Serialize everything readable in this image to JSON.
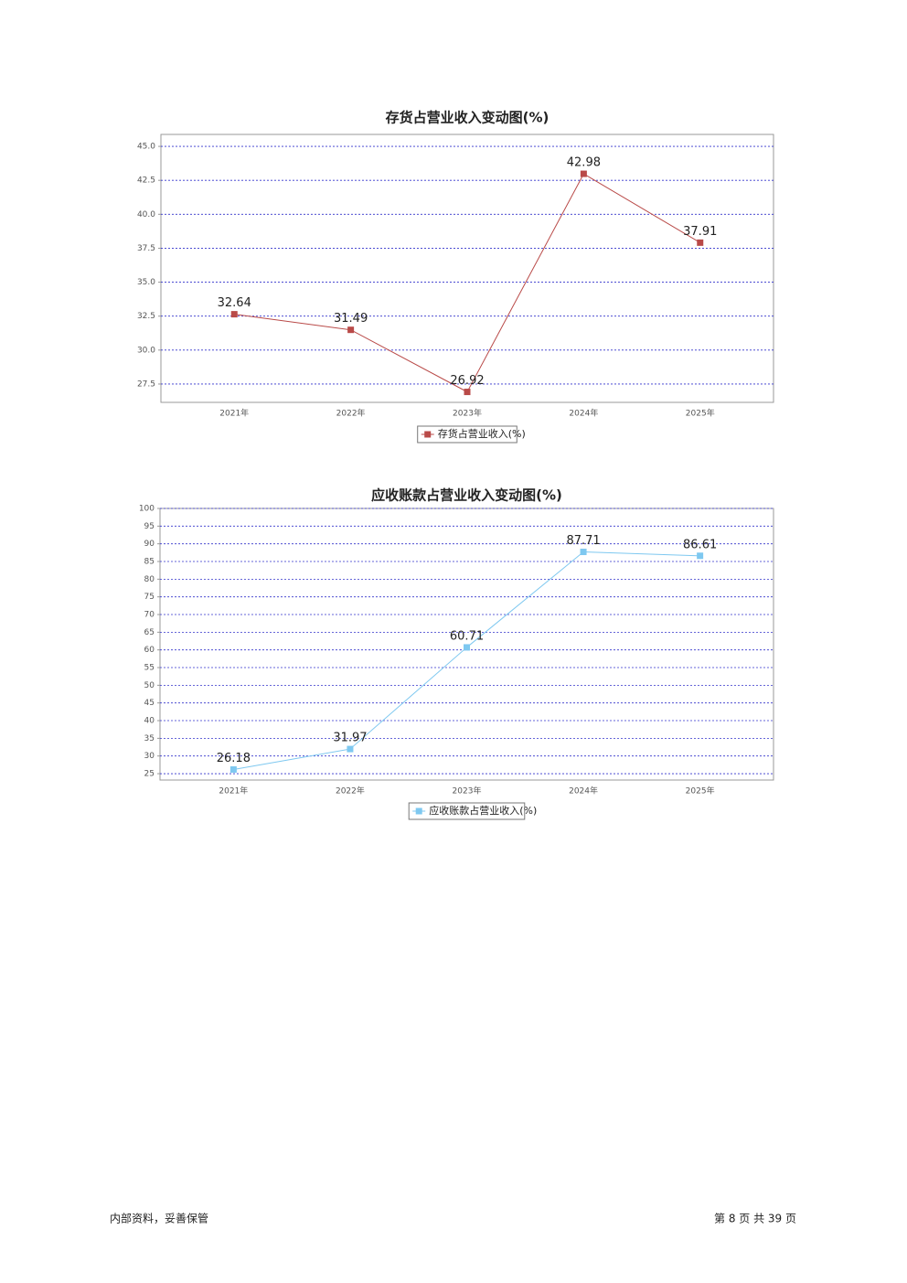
{
  "chart_data": [
    {
      "type": "line",
      "title": "存货占营业收入变动图(%)",
      "categories": [
        "2021年",
        "2022年",
        "2023年",
        "2024年",
        "2025年"
      ],
      "series": [
        {
          "name": "存货占营业收入(%)",
          "color": "#b94a48",
          "values": [
            32.64,
            31.49,
            26.92,
            42.98,
            37.91
          ]
        }
      ],
      "ylim": [
        26.15,
        45.88
      ],
      "yticks": [
        27.5,
        {
          "value": 30,
          "label": "30.0"
        },
        32.5,
        {
          "value": 35,
          "label": "35.0"
        },
        37.5,
        {
          "value": 40,
          "label": "40.0"
        },
        42.5,
        {
          "value": 45,
          "label": "45.0"
        }
      ],
      "grid": true,
      "legend": "bottom"
    },
    {
      "type": "line",
      "title": "应收账款占营业收入变动图(%)",
      "categories": [
        "2021年",
        "2022年",
        "2023年",
        "2024年",
        "2025年"
      ],
      "series": [
        {
          "name": "应收账款占营业收入(%)",
          "color": "#7ec8f0",
          "values": [
            26.18,
            31.97,
            60.71,
            87.71,
            86.61
          ]
        }
      ],
      "ylim": [
        23.2,
        100
      ],
      "yticks": [
        25,
        30,
        35,
        40,
        45,
        50,
        55,
        60,
        65,
        70,
        75,
        80,
        85,
        90,
        95,
        100
      ],
      "grid": true,
      "legend": "bottom"
    }
  ],
  "footer": {
    "left": "内部资料，妥善保管",
    "right": "第 8 页 共 39 页"
  }
}
